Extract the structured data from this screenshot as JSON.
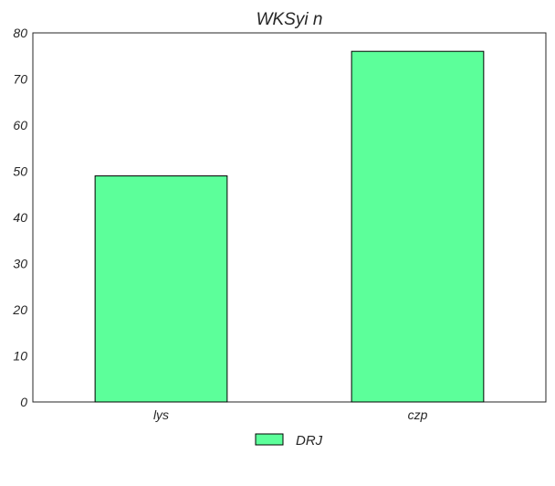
{
  "chart_data": {
    "type": "bar",
    "title": "WKSyi n",
    "categories": [
      "lys",
      "czp"
    ],
    "series": [
      {
        "name": "DRJ",
        "values": [
          49,
          76
        ],
        "color": "#5cff9a"
      }
    ],
    "ylim": [
      0,
      80
    ],
    "yticks": [
      0,
      10,
      20,
      30,
      40,
      50,
      60,
      70,
      80
    ],
    "xlabel": "",
    "ylabel": "",
    "grid": false,
    "legend_position": "bottom-center"
  }
}
